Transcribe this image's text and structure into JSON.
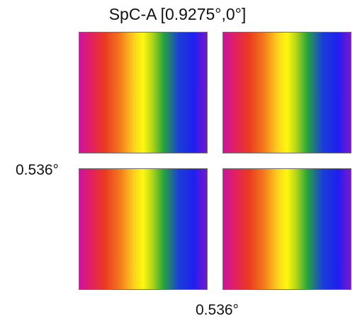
{
  "figure": {
    "title": "SpC-A [0.9275°,0°]",
    "y_size_label": "0.536°",
    "x_size_label": "0.536°"
  },
  "panels": [
    {
      "id": "top-left",
      "gradient": [
        "#c8169d",
        "#e21e66",
        "#ea3a22",
        "#f4791d",
        "#ffd21f",
        "#fff70f",
        "#b8d616",
        "#27a53a",
        "#1a3fd6",
        "#1f1ff0",
        "#7a16cf"
      ]
    },
    {
      "id": "top-right",
      "gradient": [
        "#c8169d",
        "#e21e66",
        "#ea3a22",
        "#f4791d",
        "#ffd21f",
        "#fff70f",
        "#b8d616",
        "#27a53a",
        "#1a3fd6",
        "#1f1ff0",
        "#7a16cf"
      ]
    },
    {
      "id": "bottom-left",
      "gradient": [
        "#c8169d",
        "#e21e66",
        "#ea3a22",
        "#f4791d",
        "#ffd21f",
        "#fff70f",
        "#b8d616",
        "#27a53a",
        "#1a3fd6",
        "#1f1ff0",
        "#7a16cf"
      ]
    },
    {
      "id": "bottom-right",
      "gradient": [
        "#c8169d",
        "#e21e66",
        "#ea3a22",
        "#f4791d",
        "#ffd21f",
        "#fff70f",
        "#b8d616",
        "#27a53a",
        "#1a3fd6",
        "#1f1ff0",
        "#7a16cf"
      ]
    }
  ]
}
